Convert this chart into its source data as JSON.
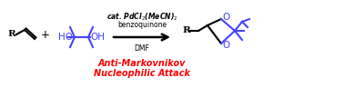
{
  "bg_color": "#ffffff",
  "arrow_color": "#000000",
  "text_color_black": "#000000",
  "text_color_blue": "#4444ff",
  "text_color_red": "#ff0000",
  "condition_line1": "cat. PdCl$_2$(MeCN)$_2$",
  "condition_line2": "benzoquinone",
  "condition_line3": "DMF",
  "bottom_text_line1": "Anti-Markovnikov",
  "bottom_text_line2": "Nucleophilic Attack",
  "fig_width": 3.78,
  "fig_height": 0.96,
  "dpi": 100
}
